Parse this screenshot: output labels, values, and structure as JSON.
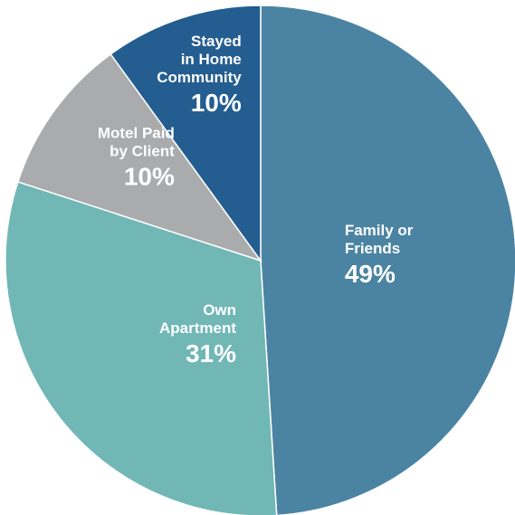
{
  "chart_data": {
    "type": "pie",
    "title": "",
    "slices": [
      {
        "label": [
          "Family or",
          "Friends"
        ],
        "value": 49,
        "display": "49%",
        "color": "#4b84a2"
      },
      {
        "label": [
          "Own",
          "Apartment"
        ],
        "value": 31,
        "display": "31%",
        "color": "#70b7b6"
      },
      {
        "label": [
          "Motel Paid",
          "by Client"
        ],
        "value": 10,
        "display": "10%",
        "color": "#a9abad"
      },
      {
        "label": [
          "Stayed",
          "in Home",
          "Community"
        ],
        "value": 10,
        "display": "10%",
        "color": "#245d90"
      }
    ]
  }
}
